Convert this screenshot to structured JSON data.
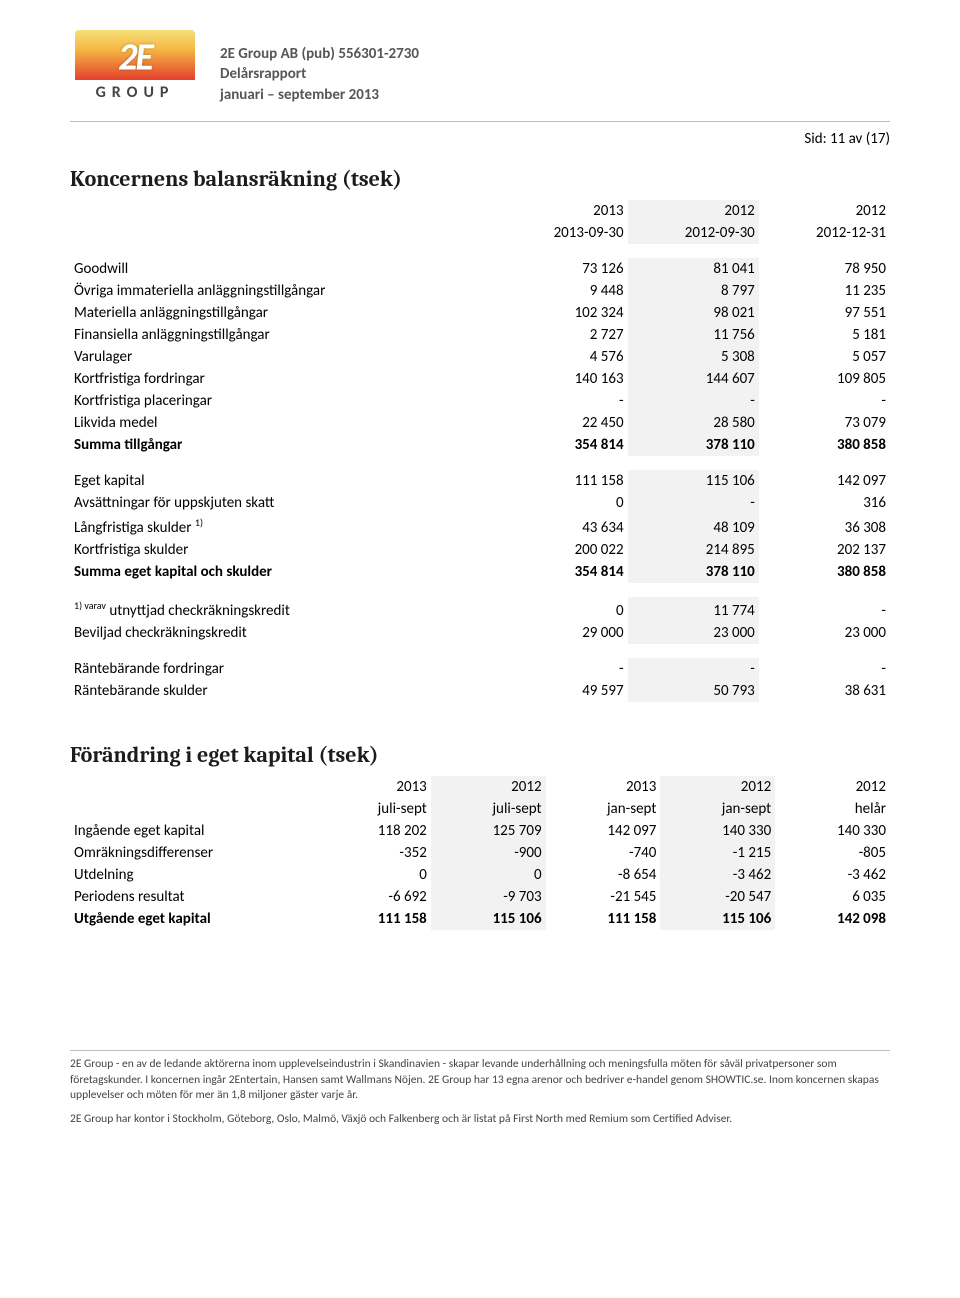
{
  "header": {
    "company": "2E Group AB (pub) 556301-2730",
    "doc_type": "Delårsrapport",
    "period": "januari – september 2013",
    "page_label": "Sid: 11 av (17)",
    "logo_text": "GROUP"
  },
  "balance": {
    "title": "Koncernens balansräkning (tsek)",
    "years": [
      "2013",
      "2012",
      "2012"
    ],
    "dates": [
      "2013-09-30",
      "2012-09-30",
      "2012-12-31"
    ],
    "rows": [
      {
        "label": "Goodwill",
        "v": [
          "73 126",
          "81 041",
          "78 950"
        ]
      },
      {
        "label": "Övriga immateriella anläggningstillgångar",
        "v": [
          "9 448",
          "8 797",
          "11 235"
        ]
      },
      {
        "label": "Materiella anläggningstillgångar",
        "v": [
          "102 324",
          "98 021",
          "97 551"
        ]
      },
      {
        "label": "Finansiella anläggningstillgångar",
        "v": [
          "2 727",
          "11 756",
          "5 181"
        ]
      },
      {
        "label": "Varulager",
        "v": [
          "4 576",
          "5 308",
          "5 057"
        ]
      },
      {
        "label": "Kortfristiga fordringar",
        "v": [
          "140 163",
          "144 607",
          "109 805"
        ]
      },
      {
        "label": "Kortfristiga placeringar",
        "v": [
          "-",
          "-",
          "-"
        ]
      },
      {
        "label": "Likvida medel",
        "v": [
          "22 450",
          "28 580",
          "73 079"
        ]
      },
      {
        "label": "Summa tillgångar",
        "v": [
          "354 814",
          "378 110",
          "380 858"
        ],
        "bold": true
      }
    ],
    "rows2": [
      {
        "label": "Eget kapital",
        "v": [
          "111 158",
          "115 106",
          "142 097"
        ]
      },
      {
        "label": "Avsättningar för uppskjuten skatt",
        "v": [
          "0",
          "-",
          "316"
        ]
      },
      {
        "label": "Långfristiga skulder",
        "sup": "1)",
        "v": [
          "43 634",
          "48 109",
          "36 308"
        ]
      },
      {
        "label": "Kortfristiga skulder",
        "v": [
          "200 022",
          "214 895",
          "202 137"
        ]
      },
      {
        "label": "Summa eget kapital och skulder",
        "v": [
          "354 814",
          "378 110",
          "380 858"
        ],
        "bold": true
      }
    ],
    "rows3": [
      {
        "label_sup": "1) varav",
        "label": "utnyttjad checkräkningskredit",
        "v": [
          "0",
          "11 774",
          "-"
        ]
      },
      {
        "label": "Beviljad checkräkningskredit",
        "v": [
          "29 000",
          "23 000",
          "23 000"
        ]
      }
    ],
    "rows4": [
      {
        "label": "Räntebärande fordringar",
        "v": [
          "-",
          "-",
          "-"
        ]
      },
      {
        "label": "Räntebärande skulder",
        "v": [
          "49 597",
          "50 793",
          "38 631"
        ]
      }
    ]
  },
  "equity": {
    "title": "Förändring i eget kapital (tsek)",
    "years": [
      "2013",
      "2012",
      "2013",
      "2012",
      "2012"
    ],
    "periods": [
      "juli-sept",
      "juli-sept",
      "jan-sept",
      "jan-sept",
      "helår"
    ],
    "rows": [
      {
        "label": "Ingående eget kapital",
        "v": [
          "118 202",
          "125 709",
          "142 097",
          "140 330",
          "140 330"
        ]
      },
      {
        "label": "Omräkningsdifferenser",
        "v": [
          "-352",
          "-900",
          "-740",
          "-1 215",
          "-805"
        ]
      },
      {
        "label": "Utdelning",
        "v": [
          "0",
          "0",
          "-8 654",
          "-3 462",
          "-3 462"
        ]
      },
      {
        "label": "Periodens resultat",
        "v": [
          "-6 692",
          "-9 703",
          "-21 545",
          "-20 547",
          "6 035"
        ]
      },
      {
        "label": "Utgående eget kapital",
        "v": [
          "111 158",
          "115 106",
          "111 158",
          "115 106",
          "142 098"
        ],
        "bold": true
      }
    ]
  },
  "footer": {
    "p1": "2E Group - en av de ledande aktörerna inom upplevelseindustrin i Skandinavien - skapar levande underhållning och meningsfulla möten för såväl privatpersoner som företagskunder. I koncernen ingår 2Entertain, Hansen samt Wallmans Nöjen. 2E Group har 13 egna arenor och bedriver e-handel genom SHOWTIC.se. Inom koncernen skapas upplevelser och möten för mer än 1,8 miljoner gäster varje år.",
    "p2": "2E Group har kontor i Stockholm, Göteborg, Oslo, Malmö, Växjö och Falkenberg och är listat på First North med Remium som Certified Adviser."
  },
  "style": {
    "shade_color": "#f2f2f2",
    "rule_color": "#bfbfbf",
    "font_body": "Calibri, Arial, sans-serif",
    "font_heading": "Cambria, Georgia, serif"
  }
}
